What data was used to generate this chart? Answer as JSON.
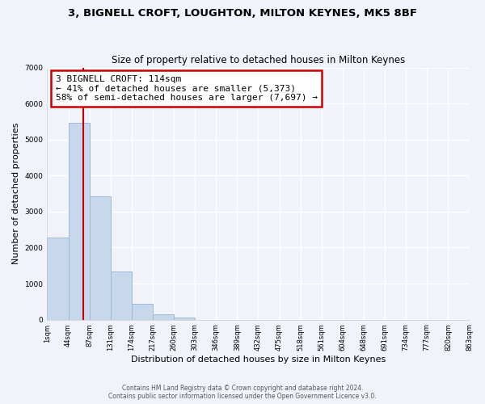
{
  "title": "3, BIGNELL CROFT, LOUGHTON, MILTON KEYNES, MK5 8BF",
  "subtitle": "Size of property relative to detached houses in Milton Keynes",
  "xlabel": "Distribution of detached houses by size in Milton Keynes",
  "ylabel": "Number of detached properties",
  "bar_color": "#c8d8ec",
  "bar_edge_color": "#a0b8d8",
  "annotation_line_color": "#cc0000",
  "background_color": "#f0f4fa",
  "grid_color": "#ffffff",
  "bin_labels": [
    "1sqm",
    "44sqm",
    "87sqm",
    "131sqm",
    "174sqm",
    "217sqm",
    "260sqm",
    "303sqm",
    "346sqm",
    "389sqm",
    "432sqm",
    "475sqm",
    "518sqm",
    "561sqm",
    "604sqm",
    "648sqm",
    "691sqm",
    "734sqm",
    "777sqm",
    "820sqm",
    "863sqm"
  ],
  "bar_heights": [
    2270,
    5460,
    3420,
    1340,
    430,
    155,
    60,
    0,
    0,
    0,
    0,
    0,
    0,
    0,
    0,
    0,
    0,
    0,
    0,
    0
  ],
  "ylim": [
    0,
    7000
  ],
  "yticks": [
    0,
    1000,
    2000,
    3000,
    4000,
    5000,
    6000,
    7000
  ],
  "vline_bin_index": 1.7,
  "annotation_box_text_line1": "3 BIGNELL CROFT: 114sqm",
  "annotation_box_text_line2": "← 41% of detached houses are smaller (5,373)",
  "annotation_box_text_line3": "58% of semi-detached houses are larger (7,697) →",
  "footer_line1": "Contains HM Land Registry data © Crown copyright and database right 2024.",
  "footer_line2": "Contains public sector information licensed under the Open Government Licence v3.0."
}
